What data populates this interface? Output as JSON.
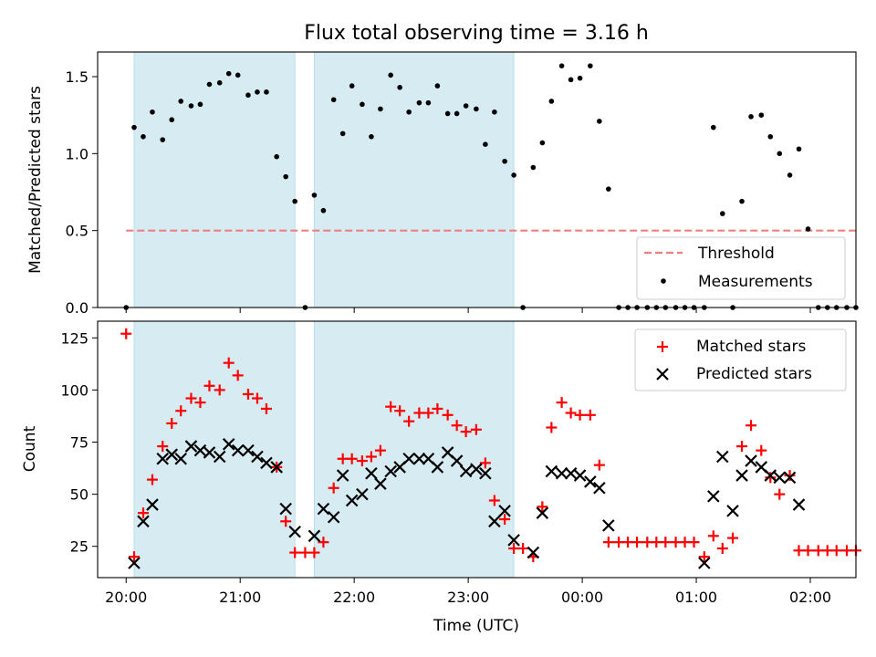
{
  "chart_data": [
    {
      "type": "scatter",
      "title": "Flux total observing time = 3.16 h",
      "ylabel": "Matched/Predicted stars",
      "xlabel": "",
      "xlim": [
        19.75,
        26.4
      ],
      "ylim": [
        0,
        1.66
      ],
      "yticks": [
        0.0,
        0.5,
        1.0,
        1.5
      ],
      "ytick_labels": [
        "0.0",
        "0.5",
        "1.0",
        "1.5"
      ],
      "shaded_regions": [
        [
          20.07,
          21.48
        ],
        [
          21.65,
          23.4
        ]
      ],
      "threshold": {
        "name": "Threshold",
        "y": 0.5,
        "x_range": [
          20.0,
          26.5
        ],
        "color": "#f08080"
      },
      "legend": {
        "position": "lower-right",
        "entries": [
          "Threshold",
          "Measurements"
        ]
      },
      "series": [
        {
          "name": "Measurements",
          "color": "#000000",
          "marker": "dot",
          "x": [
            20.0,
            20.07,
            20.15,
            20.23,
            20.32,
            20.4,
            20.48,
            20.57,
            20.65,
            20.73,
            20.82,
            20.9,
            20.98,
            21.07,
            21.15,
            21.23,
            21.32,
            21.4,
            21.48,
            21.57,
            21.65,
            21.73,
            21.82,
            21.9,
            21.98,
            22.07,
            22.15,
            22.23,
            22.32,
            22.4,
            22.48,
            22.57,
            22.65,
            22.73,
            22.82,
            22.9,
            22.98,
            23.07,
            23.15,
            23.23,
            23.32,
            23.4,
            23.48,
            23.57,
            23.65,
            23.73,
            23.82,
            23.9,
            23.98,
            24.07,
            24.15,
            24.23,
            24.32,
            24.4,
            24.48,
            24.57,
            24.65,
            24.73,
            24.82,
            24.9,
            24.98,
            25.07,
            25.15,
            25.23,
            25.32,
            25.4,
            25.48,
            25.57,
            25.65,
            25.73,
            25.82,
            25.9,
            25.98,
            26.07,
            26.15,
            26.23,
            26.32,
            26.4,
            26.48
          ],
          "y": [
            0.0,
            1.17,
            1.11,
            1.27,
            1.09,
            1.22,
            1.34,
            1.31,
            1.32,
            1.45,
            1.46,
            1.52,
            1.51,
            1.38,
            1.4,
            1.4,
            0.98,
            0.85,
            0.69,
            0.0,
            0.73,
            0.63,
            1.35,
            1.13,
            1.44,
            1.32,
            1.11,
            1.29,
            1.51,
            1.43,
            1.27,
            1.33,
            1.33,
            1.44,
            1.26,
            1.26,
            1.31,
            1.29,
            1.06,
            1.27,
            0.95,
            0.86,
            0.0,
            0.91,
            1.07,
            1.34,
            1.57,
            1.48,
            1.49,
            1.57,
            1.21,
            0.77,
            0.0,
            0.0,
            0.0,
            0.0,
            0.0,
            0.0,
            0.0,
            0.0,
            0.0,
            0.0,
            1.17,
            0.61,
            0.0,
            0.69,
            1.24,
            1.25,
            1.11,
            1.0,
            0.86,
            1.03,
            0.51,
            0.0,
            0.0,
            0.0,
            0.0,
            0.0,
            0.0
          ]
        }
      ]
    },
    {
      "type": "scatter",
      "title": "",
      "xlabel": "Time (UTC)",
      "ylabel": "Count",
      "xlim": [
        19.75,
        26.4
      ],
      "ylim": [
        10,
        133
      ],
      "xticks": [
        20,
        21,
        22,
        23,
        24,
        25,
        26
      ],
      "xtick_labels": [
        "20:00",
        "21:00",
        "22:00",
        "23:00",
        "00:00",
        "01:00",
        "02:00"
      ],
      "yticks": [
        25,
        50,
        75,
        100,
        125
      ],
      "ytick_labels": [
        "25",
        "50",
        "75",
        "100",
        "125"
      ],
      "shaded_regions": [
        [
          20.07,
          21.48
        ],
        [
          21.65,
          23.4
        ]
      ],
      "legend": {
        "position": "upper-right",
        "entries": [
          "Matched stars",
          "Predicted stars"
        ]
      },
      "series": [
        {
          "name": "Matched stars",
          "color": "#ff0000",
          "marker": "plus",
          "x": [
            20.0,
            20.07,
            20.15,
            20.23,
            20.32,
            20.4,
            20.48,
            20.57,
            20.65,
            20.73,
            20.82,
            20.9,
            20.98,
            21.07,
            21.15,
            21.23,
            21.32,
            21.4,
            21.48,
            21.57,
            21.65,
            21.73,
            21.82,
            21.9,
            21.98,
            22.07,
            22.15,
            22.23,
            22.32,
            22.4,
            22.48,
            22.57,
            22.65,
            22.73,
            22.82,
            22.9,
            22.98,
            23.07,
            23.15,
            23.23,
            23.32,
            23.4,
            23.48,
            23.57,
            23.65,
            23.73,
            23.82,
            23.9,
            23.98,
            24.07,
            24.15,
            24.23,
            24.32,
            24.4,
            24.48,
            24.57,
            24.65,
            24.73,
            24.82,
            24.9,
            24.98,
            25.07,
            25.15,
            25.23,
            25.32,
            25.4,
            25.48,
            25.57,
            25.65,
            25.73,
            25.82,
            25.9,
            25.98,
            26.07,
            26.15,
            26.23,
            26.32,
            26.4,
            26.48
          ],
          "y": [
            127,
            20,
            41,
            57,
            73,
            84,
            90,
            96,
            94,
            102,
            100,
            113,
            107,
            98,
            96,
            91,
            63,
            37,
            22,
            22,
            22,
            27,
            53,
            67,
            67,
            66,
            68,
            71,
            92,
            90,
            85,
            89,
            89,
            91,
            88,
            83,
            80,
            81,
            65,
            47,
            38,
            24,
            24,
            20,
            44,
            82,
            94,
            89,
            88,
            88,
            64,
            27,
            27,
            27,
            27,
            27,
            27,
            27,
            27,
            27,
            27,
            20,
            30,
            24,
            29,
            73,
            83,
            71,
            58,
            50,
            59,
            23,
            23,
            23,
            23,
            23,
            23,
            23,
            23
          ]
        },
        {
          "name": "Predicted stars",
          "color": "#000000",
          "marker": "x",
          "x": [
            20.07,
            20.15,
            20.23,
            20.32,
            20.4,
            20.48,
            20.57,
            20.65,
            20.73,
            20.82,
            20.9,
            20.98,
            21.07,
            21.15,
            21.23,
            21.32,
            21.4,
            21.48,
            21.65,
            21.73,
            21.82,
            21.9,
            21.98,
            22.07,
            22.15,
            22.23,
            22.32,
            22.4,
            22.48,
            22.57,
            22.65,
            22.73,
            22.82,
            22.9,
            22.98,
            23.07,
            23.15,
            23.23,
            23.32,
            23.4,
            23.57,
            23.65,
            23.73,
            23.82,
            23.9,
            23.98,
            24.07,
            24.15,
            24.23,
            25.07,
            25.15,
            25.23,
            25.32,
            25.4,
            25.48,
            25.57,
            25.65,
            25.73,
            25.82,
            25.9
          ],
          "y": [
            17,
            37,
            45,
            67,
            69,
            67,
            73,
            71,
            70,
            68,
            74,
            71,
            71,
            68,
            65,
            63,
            43,
            32,
            30,
            43,
            39,
            59,
            47,
            50,
            60,
            55,
            61,
            63,
            67,
            67,
            67,
            63,
            70,
            66,
            61,
            62,
            60,
            37,
            42,
            28,
            22,
            41,
            61,
            60,
            60,
            59,
            56,
            53,
            35,
            17,
            49,
            68,
            42,
            59,
            66,
            63,
            59,
            58,
            58,
            45
          ]
        }
      ]
    }
  ]
}
